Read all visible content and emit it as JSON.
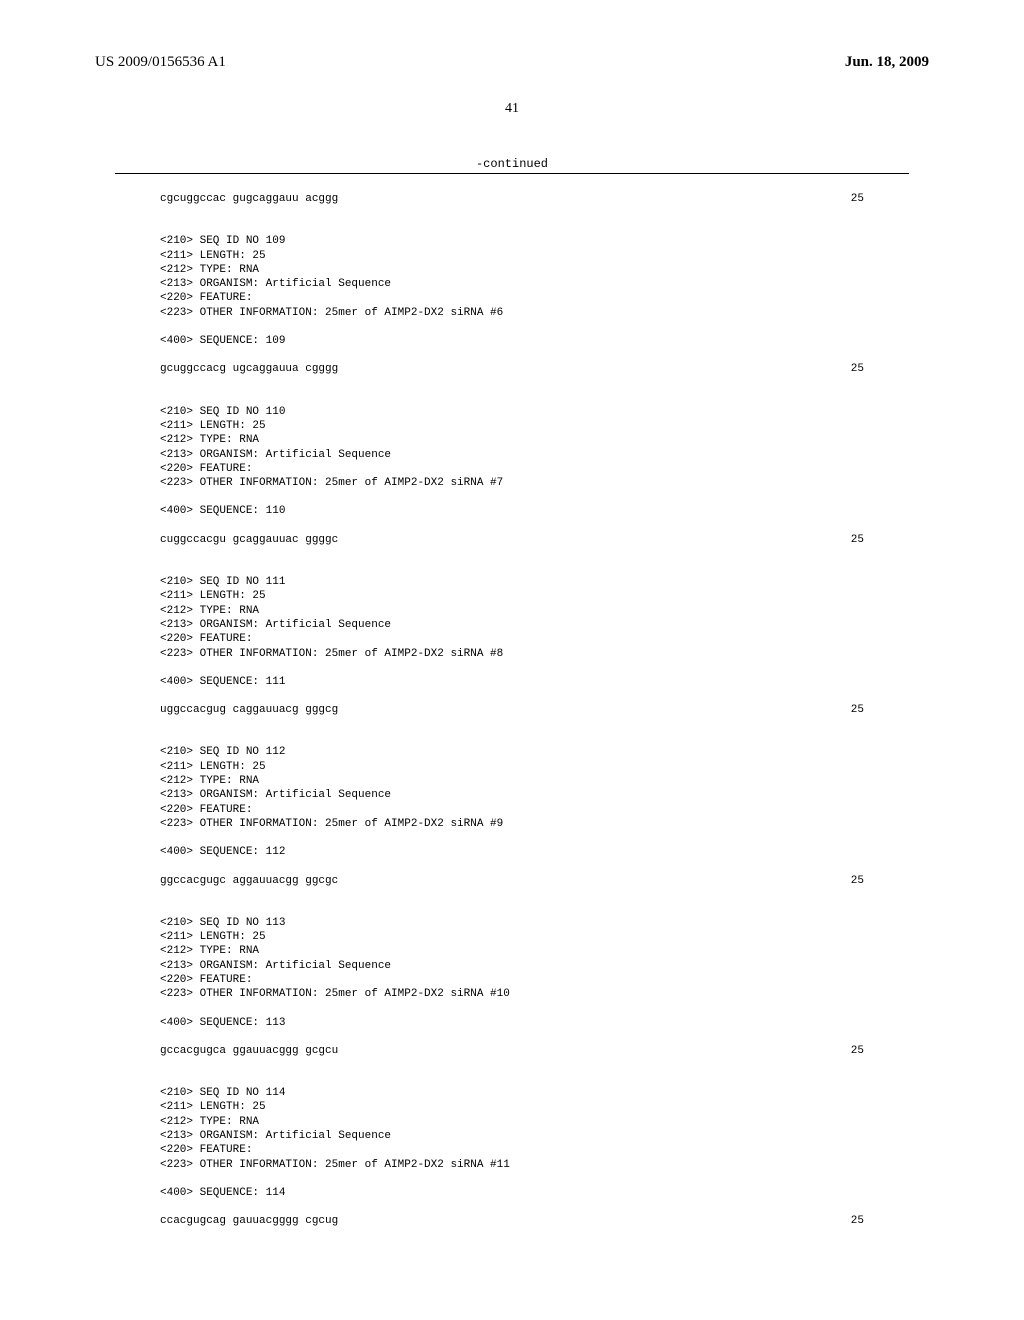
{
  "header": {
    "pub_number": "US 2009/0156536 A1",
    "pub_date": "Jun. 18, 2009"
  },
  "page_number": "41",
  "continued_label": "-continued",
  "first_sequence": {
    "text": "cgcuggccac gugcaggauu acggg",
    "length": "25"
  },
  "entries": [
    {
      "seq_id": "<210> SEQ ID NO 109",
      "length": "<211> LENGTH: 25",
      "type": "<212> TYPE: RNA",
      "organism": "<213> ORGANISM: Artificial Sequence",
      "feature": "<220> FEATURE:",
      "other_info": "<223> OTHER INFORMATION: 25mer of AIMP2-DX2 siRNA #6",
      "sequence_label": "<400> SEQUENCE: 109",
      "sequence_text": "gcuggccacg ugcaggauua cgggg",
      "sequence_length": "25"
    },
    {
      "seq_id": "<210> SEQ ID NO 110",
      "length": "<211> LENGTH: 25",
      "type": "<212> TYPE: RNA",
      "organism": "<213> ORGANISM: Artificial Sequence",
      "feature": "<220> FEATURE:",
      "other_info": "<223> OTHER INFORMATION: 25mer of AIMP2-DX2 siRNA #7",
      "sequence_label": "<400> SEQUENCE: 110",
      "sequence_text": "cuggccacgu gcaggauuac ggggc",
      "sequence_length": "25"
    },
    {
      "seq_id": "<210> SEQ ID NO 111",
      "length": "<211> LENGTH: 25",
      "type": "<212> TYPE: RNA",
      "organism": "<213> ORGANISM: Artificial Sequence",
      "feature": "<220> FEATURE:",
      "other_info": "<223> OTHER INFORMATION: 25mer of AIMP2-DX2 siRNA #8",
      "sequence_label": "<400> SEQUENCE: 111",
      "sequence_text": "uggccacgug caggauuacg gggcg",
      "sequence_length": "25"
    },
    {
      "seq_id": "<210> SEQ ID NO 112",
      "length": "<211> LENGTH: 25",
      "type": "<212> TYPE: RNA",
      "organism": "<213> ORGANISM: Artificial Sequence",
      "feature": "<220> FEATURE:",
      "other_info": "<223> OTHER INFORMATION: 25mer of AIMP2-DX2 siRNA #9",
      "sequence_label": "<400> SEQUENCE: 112",
      "sequence_text": "ggccacgugc aggauuacgg ggcgc",
      "sequence_length": "25"
    },
    {
      "seq_id": "<210> SEQ ID NO 113",
      "length": "<211> LENGTH: 25",
      "type": "<212> TYPE: RNA",
      "organism": "<213> ORGANISM: Artificial Sequence",
      "feature": "<220> FEATURE:",
      "other_info": "<223> OTHER INFORMATION: 25mer of AIMP2-DX2 siRNA #10",
      "sequence_label": "<400> SEQUENCE: 113",
      "sequence_text": "gccacgugca ggauuacggg gcgcu",
      "sequence_length": "25"
    },
    {
      "seq_id": "<210> SEQ ID NO 114",
      "length": "<211> LENGTH: 25",
      "type": "<212> TYPE: RNA",
      "organism": "<213> ORGANISM: Artificial Sequence",
      "feature": "<220> FEATURE:",
      "other_info": "<223> OTHER INFORMATION: 25mer of AIMP2-DX2 siRNA #11",
      "sequence_label": "<400> SEQUENCE: 114",
      "sequence_text": "ccacgugcag gauuacgggg cgcug",
      "sequence_length": "25"
    }
  ]
}
